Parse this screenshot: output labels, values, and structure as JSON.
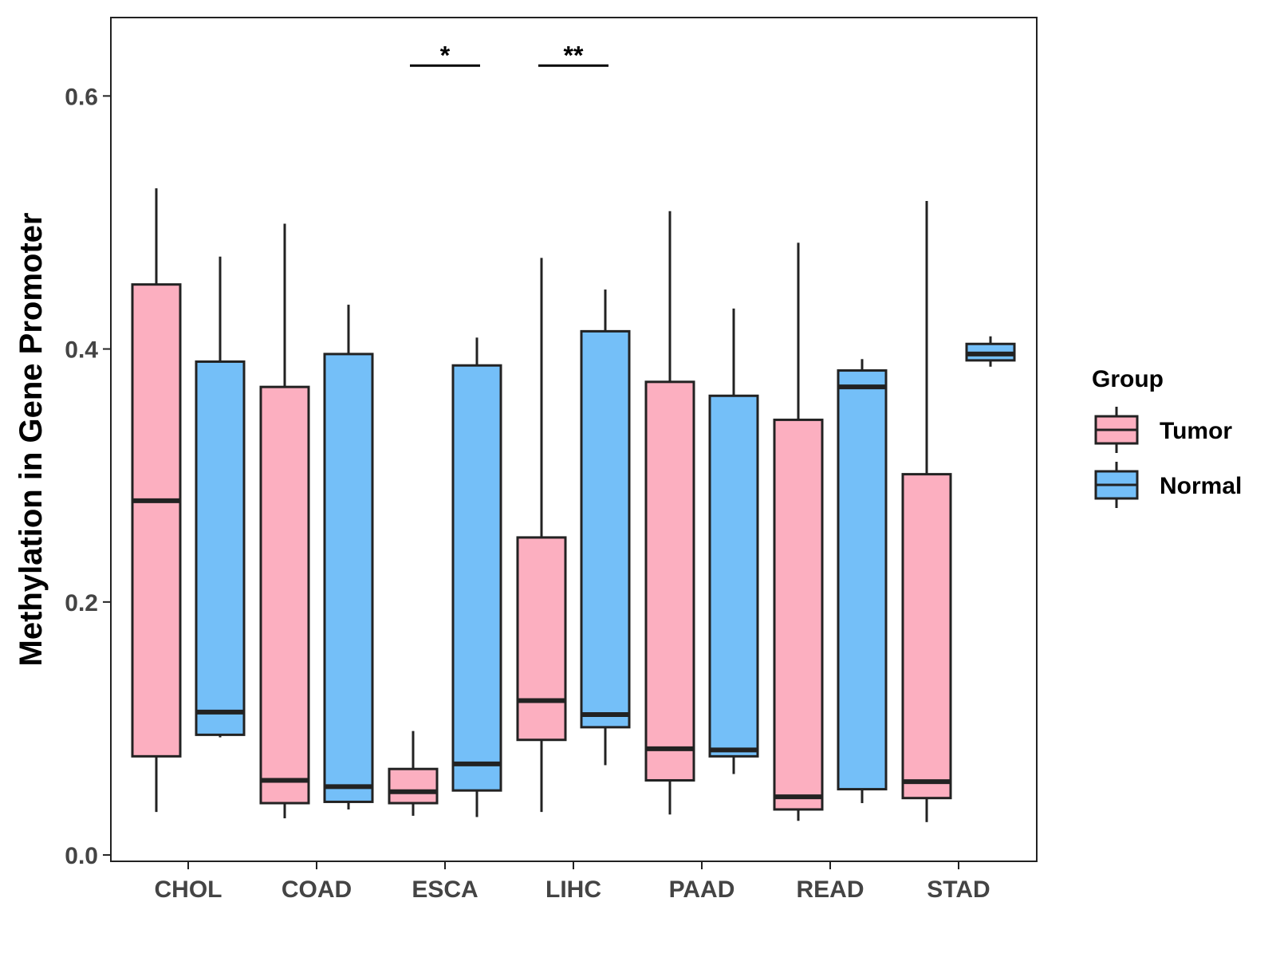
{
  "chart_data": {
    "type": "boxplot",
    "title": "",
    "xlabel": "",
    "ylabel": "Methylation in Gene Promoter",
    "ylim": [
      -0.005,
      0.662
    ],
    "yticks": [
      0.0,
      0.2,
      0.4,
      0.6
    ],
    "ytick_labels": [
      "0.0",
      "0.2",
      "0.4",
      "0.6"
    ],
    "categories": [
      "CHOL",
      "COAD",
      "ESCA",
      "LIHC",
      "PAAD",
      "READ",
      "STAD"
    ],
    "grid": false,
    "legend": {
      "title": "Group",
      "position": "right",
      "entries": [
        "Tumor",
        "Normal"
      ]
    },
    "colors": {
      "Tumor": "#FCAFC0",
      "Normal": "#74BFF8",
      "outline": "#222222"
    },
    "series": [
      {
        "name": "Tumor",
        "boxes": [
          {
            "category": "CHOL",
            "min": 0.034,
            "q1": 0.078,
            "median": 0.28,
            "q3": 0.451,
            "max": 0.527
          },
          {
            "category": "COAD",
            "min": 0.029,
            "q1": 0.041,
            "median": 0.059,
            "q3": 0.37,
            "max": 0.499
          },
          {
            "category": "ESCA",
            "min": 0.031,
            "q1": 0.041,
            "median": 0.05,
            "q3": 0.068,
            "max": 0.098
          },
          {
            "category": "LIHC",
            "min": 0.034,
            "q1": 0.091,
            "median": 0.122,
            "q3": 0.251,
            "max": 0.472
          },
          {
            "category": "PAAD",
            "min": 0.032,
            "q1": 0.059,
            "median": 0.084,
            "q3": 0.374,
            "max": 0.509
          },
          {
            "category": "READ",
            "min": 0.027,
            "q1": 0.036,
            "median": 0.046,
            "q3": 0.344,
            "max": 0.484
          },
          {
            "category": "STAD",
            "min": 0.026,
            "q1": 0.045,
            "median": 0.058,
            "q3": 0.301,
            "max": 0.517
          }
        ]
      },
      {
        "name": "Normal",
        "boxes": [
          {
            "category": "CHOL",
            "min": 0.093,
            "q1": 0.095,
            "median": 0.113,
            "q3": 0.39,
            "max": 0.473
          },
          {
            "category": "COAD",
            "min": 0.036,
            "q1": 0.042,
            "median": 0.054,
            "q3": 0.396,
            "max": 0.435
          },
          {
            "category": "ESCA",
            "min": 0.03,
            "q1": 0.051,
            "median": 0.072,
            "q3": 0.387,
            "max": 0.409
          },
          {
            "category": "LIHC",
            "min": 0.071,
            "q1": 0.101,
            "median": 0.111,
            "q3": 0.414,
            "max": 0.447
          },
          {
            "category": "PAAD",
            "min": 0.064,
            "q1": 0.078,
            "median": 0.083,
            "q3": 0.363,
            "max": 0.432
          },
          {
            "category": "READ",
            "min": 0.041,
            "q1": 0.052,
            "median": 0.37,
            "q3": 0.383,
            "max": 0.392
          },
          {
            "category": "STAD",
            "min": 0.386,
            "q1": 0.391,
            "median": 0.396,
            "q3": 0.404,
            "max": 0.41
          }
        ]
      }
    ],
    "annotations": [
      {
        "category": "ESCA",
        "label": "*",
        "y": 0.624
      },
      {
        "category": "LIHC",
        "label": "**",
        "y": 0.624
      }
    ]
  }
}
